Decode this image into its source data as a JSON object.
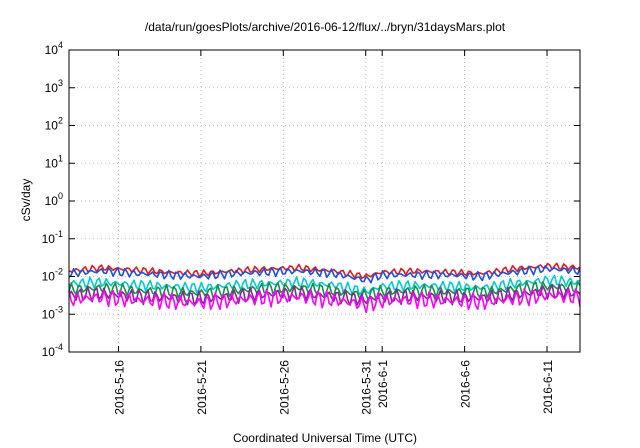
{
  "chart_data": {
    "type": "line",
    "title": "/data/run/goesPlots/archive/2016-06-12/flux/../bryn/31daysMars.plot",
    "xlabel": "Coordinated Universal Time (UTC)",
    "ylabel": "cSv/day",
    "yscale": "log",
    "ylim": [
      0.0001,
      10000
    ],
    "xlim": [
      "2016-05-13T00:00",
      "2016-06-13T00:00"
    ],
    "grid": true,
    "legend": "none",
    "y_ticks": [
      {
        "base": "10",
        "exp": "-4",
        "value": 0.0001
      },
      {
        "base": "10",
        "exp": "-3",
        "value": 0.001
      },
      {
        "base": "10",
        "exp": "-2",
        "value": 0.01
      },
      {
        "base": "10",
        "exp": "-1",
        "value": 0.1
      },
      {
        "base": "10",
        "exp": "0",
        "value": 1
      },
      {
        "base": "10",
        "exp": "1",
        "value": 10
      },
      {
        "base": "10",
        "exp": "2",
        "value": 100
      },
      {
        "base": "10",
        "exp": "3",
        "value": 1000
      },
      {
        "base": "10",
        "exp": "4",
        "value": 10000
      }
    ],
    "x_ticks": [
      {
        "date": "2016-05-16",
        "lines": [
          "2016-5-16"
        ]
      },
      {
        "date": "2016-05-21",
        "lines": [
          "2016-5-21"
        ]
      },
      {
        "date": "2016-05-26",
        "lines": [
          "2016-5-26"
        ]
      },
      {
        "date": "2016-05-31",
        "lines": [
          "2016-5-31"
        ]
      },
      {
        "date": "2016-06-01",
        "lines": [
          "2016-6-1"
        ]
      },
      {
        "date": "2016-06-06",
        "lines": [
          "2016-6-6"
        ]
      },
      {
        "date": "2016-06-11",
        "lines": [
          "2016-6-11"
        ]
      }
    ],
    "x": [
      "2016-05-13",
      "2016-05-15",
      "2016-05-17",
      "2016-05-19",
      "2016-05-21",
      "2016-05-23",
      "2016-05-25",
      "2016-05-27",
      "2016-05-29",
      "2016-05-31",
      "2016-06-01",
      "2016-06-03",
      "2016-06-05",
      "2016-06-07",
      "2016-06-09",
      "2016-06-11",
      "2016-06-13"
    ],
    "series": [
      {
        "color": "#e41a1c",
        "values": [
          0.014,
          0.017,
          0.015,
          0.013,
          0.012,
          0.014,
          0.016,
          0.017,
          0.014,
          0.01,
          0.013,
          0.014,
          0.013,
          0.012,
          0.016,
          0.019,
          0.017
        ]
      },
      {
        "color": "#1f4fe0",
        "values": [
          0.012,
          0.014,
          0.012,
          0.011,
          0.01,
          0.012,
          0.013,
          0.014,
          0.012,
          0.008,
          0.011,
          0.011,
          0.011,
          0.01,
          0.013,
          0.016,
          0.014
        ]
      },
      {
        "color": "#00cccc",
        "values": [
          0.0065,
          0.007,
          0.006,
          0.0055,
          0.005,
          0.006,
          0.0065,
          0.007,
          0.006,
          0.004,
          0.0055,
          0.0058,
          0.0055,
          0.005,
          0.0065,
          0.008,
          0.007
        ]
      },
      {
        "color": "#1e8c4a",
        "values": [
          0.0045,
          0.005,
          0.0042,
          0.004,
          0.0036,
          0.0042,
          0.0048,
          0.005,
          0.0042,
          0.0032,
          0.004,
          0.0042,
          0.004,
          0.0038,
          0.0046,
          0.0055,
          0.005
        ]
      },
      {
        "color": "#7b2c8e",
        "values": [
          0.0032,
          0.0035,
          0.003,
          0.0028,
          0.0026,
          0.003,
          0.0034,
          0.0036,
          0.003,
          0.0024,
          0.0029,
          0.003,
          0.0029,
          0.0027,
          0.0033,
          0.004,
          0.0036
        ]
      },
      {
        "color": "#ff00ff",
        "values": [
          0.0025,
          0.0028,
          0.0024,
          0.0022,
          0.002,
          0.0024,
          0.0027,
          0.0029,
          0.0024,
          0.0018,
          0.0023,
          0.0024,
          0.0023,
          0.0021,
          0.0026,
          0.0032,
          0.0028
        ]
      }
    ]
  }
}
